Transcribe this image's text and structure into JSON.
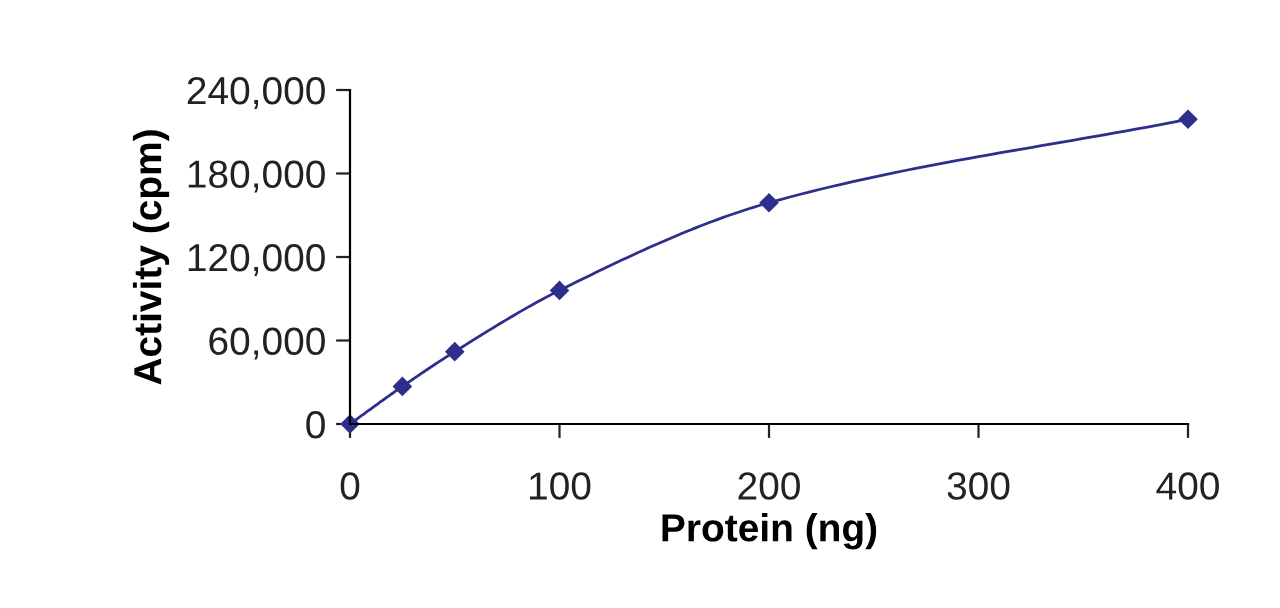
{
  "chart_data": {
    "type": "line",
    "xlabel": "Protein (ng)",
    "ylabel": "Activity (cpm)",
    "x": [
      0,
      25,
      50,
      100,
      200,
      400
    ],
    "series": [
      {
        "color": "#2e2e8c",
        "values": [
          0,
          27000,
          52000,
          96000,
          159000,
          219000
        ]
      }
    ],
    "xlim": [
      0,
      400
    ],
    "xticks": [
      0,
      100,
      200,
      300,
      400
    ],
    "ylim": [
      0,
      240000
    ],
    "yticks": [
      {
        "value": 0,
        "label": "0"
      },
      {
        "value": 60000,
        "label": "60,000"
      },
      {
        "value": 120000,
        "label": "120,000"
      },
      {
        "value": 180000,
        "label": "180,000"
      },
      {
        "value": 240000,
        "label": "240,000"
      }
    ],
    "marker": "diamond",
    "line_style": "solid",
    "grid": false,
    "legend": false
  }
}
